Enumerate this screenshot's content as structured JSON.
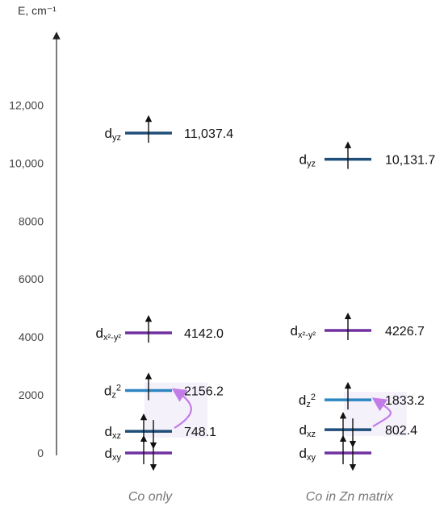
{
  "axis": {
    "title": "E, cm⁻¹",
    "ticks": [
      {
        "value": 0,
        "label": "0"
      },
      {
        "value": 2000,
        "label": "2000"
      },
      {
        "value": 4000,
        "label": "4000"
      },
      {
        "value": 6000,
        "label": "6000"
      },
      {
        "value": 8000,
        "label": "8000"
      },
      {
        "value": 10000,
        "label": "10,000"
      },
      {
        "value": 12000,
        "label": "12,000"
      }
    ]
  },
  "colors": {
    "dark_blue": "#1f4e79",
    "light_blue": "#2e86c1",
    "purple": "#7030a0",
    "arrow_pink": "#c27ce8"
  },
  "panels": [
    {
      "caption": "Co only",
      "levels": [
        {
          "main": "d",
          "sub": "xy",
          "sup": "",
          "energy": 0,
          "value_label": "",
          "color": "purple",
          "electrons": "pair",
          "show_value": false
        },
        {
          "main": "d",
          "sub": "xz",
          "sup": "",
          "energy": 748.1,
          "value_label": "748.1",
          "color": "dark_blue",
          "electrons": "pair",
          "show_value": true
        },
        {
          "main": "d",
          "sub": "z",
          "sup": "2",
          "energy": 2156.2,
          "value_label": "2156.2",
          "color": "light_blue",
          "electrons": "up",
          "show_value": true
        },
        {
          "main": "d",
          "sub": "x²-y²",
          "sup": "",
          "energy": 4142.0,
          "value_label": "4142.0",
          "color": "purple",
          "electrons": "up",
          "show_value": true
        },
        {
          "main": "d",
          "sub": "yz",
          "sup": "",
          "energy": 11037.4,
          "value_label": "11,037.4",
          "color": "dark_blue",
          "electrons": "up",
          "show_value": true
        }
      ]
    },
    {
      "caption": "Co in Zn matrix",
      "levels": [
        {
          "main": "d",
          "sub": "xy",
          "sup": "",
          "energy": 0,
          "value_label": "",
          "color": "purple",
          "electrons": "pair",
          "show_value": false
        },
        {
          "main": "d",
          "sub": "xz",
          "sup": "",
          "energy": 802.4,
          "value_label": "802.4",
          "color": "dark_blue",
          "electrons": "pair",
          "show_value": true
        },
        {
          "main": "d",
          "sub": "z",
          "sup": "2",
          "energy": 1833.2,
          "value_label": "1833.2",
          "color": "light_blue",
          "electrons": "up",
          "show_value": true
        },
        {
          "main": "d",
          "sub": "x²-y²",
          "sup": "",
          "energy": 4226.7,
          "value_label": "4226.7",
          "color": "purple",
          "electrons": "up",
          "show_value": true
        },
        {
          "main": "d",
          "sub": "yz",
          "sup": "",
          "energy": 10131.7,
          "value_label": "10,131.7",
          "color": "dark_blue",
          "electrons": "up",
          "show_value": true
        }
      ]
    }
  ]
}
